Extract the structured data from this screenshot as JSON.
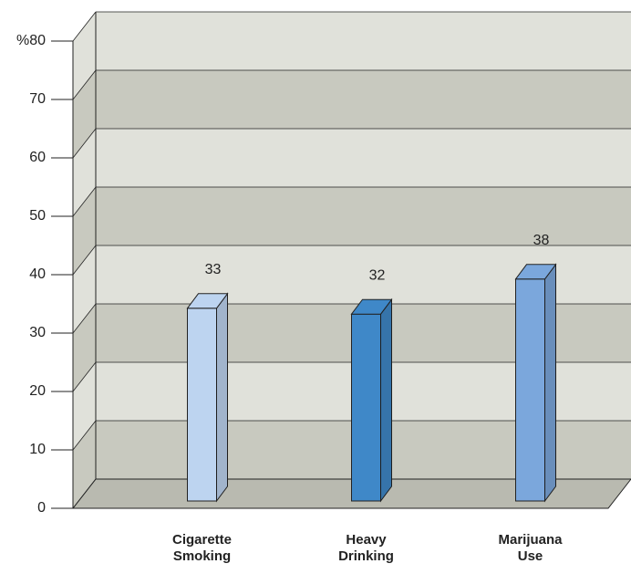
{
  "chart_data": {
    "type": "bar3d",
    "categories": [
      "Cigarette Smoking",
      "Heavy Drinking",
      "Marijuana Use"
    ],
    "values": [
      33,
      32,
      38
    ],
    "colors": [
      "#bdd4f0",
      "#3f88c8",
      "#7ba7dc"
    ],
    "ylim": [
      0,
      80
    ],
    "yticks": [
      0,
      10,
      20,
      30,
      40,
      50,
      60,
      70,
      {
        "value": 80,
        "label": "%80"
      }
    ],
    "grid": true
  }
}
